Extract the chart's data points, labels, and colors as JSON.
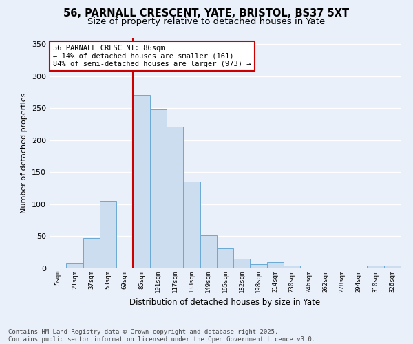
{
  "title_line1": "56, PARNALL CRESCENT, YATE, BRISTOL, BS37 5XT",
  "title_line2": "Size of property relative to detached houses in Yate",
  "xlabel": "Distribution of detached houses by size in Yate",
  "ylabel": "Number of detached properties",
  "bin_labels": [
    "5sqm",
    "21sqm",
    "37sqm",
    "53sqm",
    "69sqm",
    "85sqm",
    "101sqm",
    "117sqm",
    "133sqm",
    "149sqm",
    "165sqm",
    "182sqm",
    "198sqm",
    "214sqm",
    "230sqm",
    "246sqm",
    "262sqm",
    "278sqm",
    "294sqm",
    "310sqm",
    "326sqm"
  ],
  "bar_values": [
    0,
    9,
    47,
    105,
    0,
    271,
    248,
    221,
    135,
    52,
    31,
    15,
    6,
    10,
    4,
    0,
    0,
    0,
    0,
    4,
    4
  ],
  "bar_color": "#ccddf0",
  "bar_edge_color": "#6aaad4",
  "vline_color": "#cc0000",
  "vline_x": 4.5,
  "annotation_text": "56 PARNALL CRESCENT: 86sqm\n← 14% of detached houses are smaller (161)\n84% of semi-detached houses are larger (973) →",
  "annotation_box_color": "#ffffff",
  "annotation_box_edge": "#cc0000",
  "ylim": [
    0,
    360
  ],
  "yticks": [
    0,
    50,
    100,
    150,
    200,
    250,
    300,
    350
  ],
  "bg_color": "#eaf0fa",
  "grid_color": "#ffffff",
  "footnote": "Contains HM Land Registry data © Crown copyright and database right 2025.\nContains public sector information licensed under the Open Government Licence v3.0.",
  "title_fontsize": 10.5,
  "subtitle_fontsize": 9.5,
  "annotation_fontsize": 7.5,
  "footnote_fontsize": 6.5,
  "ylabel_fontsize": 8,
  "xlabel_fontsize": 8.5
}
